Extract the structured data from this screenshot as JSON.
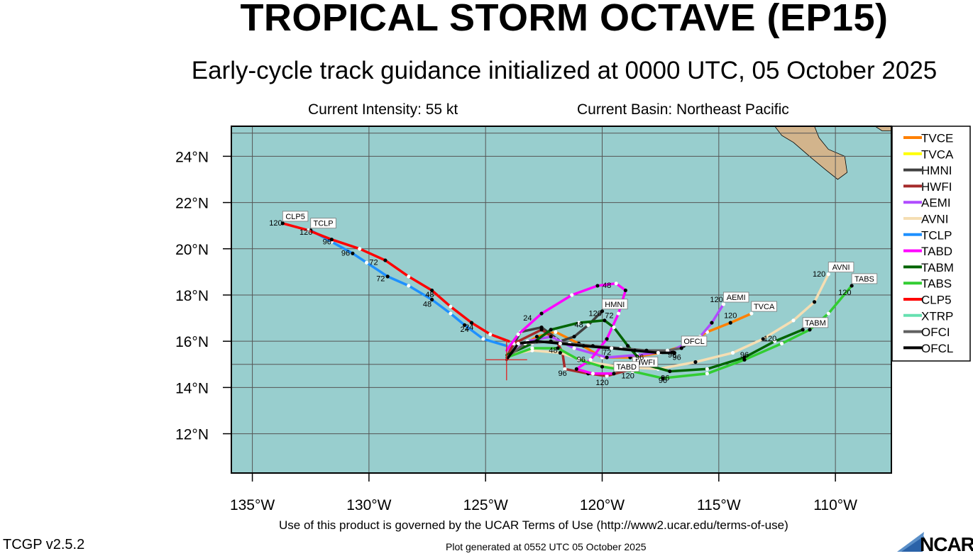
{
  "header": {
    "title": "TROPICAL STORM OCTAVE (EP15)",
    "subtitle": "Early-cycle track guidance initialized at 0000 UTC, 05 October 2025",
    "intensity": "Current Intensity: 55 kt",
    "basin": "Current Basin: Northeast Pacific"
  },
  "footer": {
    "terms": "Use of this product is governed by the UCAR Terms of Use (http://www2.ucar.edu/terms-of-use)",
    "version": "TCGP v2.5.2",
    "generated": "Plot generated at 0552 UTC   05 October 2025",
    "logo": "NCAR"
  },
  "colors": {
    "ocean": "#98cece",
    "land": "#d2b48c",
    "grid": "#555555"
  },
  "map": {
    "lon_ticks": [
      {
        "value": -135,
        "label": "135°W"
      },
      {
        "value": -130,
        "label": "130°W"
      },
      {
        "value": -125,
        "label": "125°W"
      },
      {
        "value": -120,
        "label": "120°W"
      },
      {
        "value": -115,
        "label": "115°W"
      },
      {
        "value": -110,
        "label": "110°W"
      }
    ],
    "lat_ticks": [
      {
        "value": 12,
        "label": "12°N"
      },
      {
        "value": 14,
        "label": "14°N"
      },
      {
        "value": 16,
        "label": "16°N"
      },
      {
        "value": 18,
        "label": "18°N"
      },
      {
        "value": 20,
        "label": "20°N"
      },
      {
        "value": 22,
        "label": "22°N"
      },
      {
        "value": 24,
        "label": "24°N"
      }
    ],
    "extent": {
      "lon": [
        -135.9,
        -107.6
      ],
      "lat": [
        10.3,
        25.3
      ]
    },
    "current_position": {
      "lon": -124.1,
      "lat": 15.2
    }
  },
  "legend": [
    {
      "name": "TVCE",
      "color": "#ff8000"
    },
    {
      "name": "TVCA",
      "color": "#ffff00"
    },
    {
      "name": "HMNI",
      "color": "#404040"
    },
    {
      "name": "HWFI",
      "color": "#a52a2a"
    },
    {
      "name": "AEMI",
      "color": "#b04cff"
    },
    {
      "name": "AVNI",
      "color": "#f5deb3"
    },
    {
      "name": "TCLP",
      "color": "#1e90ff"
    },
    {
      "name": "TABD",
      "color": "#ff00ff"
    },
    {
      "name": "TABM",
      "color": "#006400"
    },
    {
      "name": "TABS",
      "color": "#32cd32"
    },
    {
      "name": "CLP5",
      "color": "#ff0000"
    },
    {
      "name": "XTRP",
      "color": "#66e0b0"
    },
    {
      "name": "OFCI",
      "color": "#606060"
    },
    {
      "name": "OFCL",
      "color": "#000000"
    }
  ],
  "tracks": [
    {
      "model": "TCLP",
      "color": "#1e90ff",
      "label": "TCLP",
      "points": [
        [
          -124.1,
          15.8
        ],
        [
          -125.1,
          16.1
        ],
        [
          -125.9,
          16.7
        ],
        [
          -126.5,
          17.2
        ],
        [
          -127.3,
          17.8
        ],
        [
          -128.3,
          18.4
        ],
        [
          -129.2,
          18.8
        ],
        [
          -130.1,
          19.4
        ],
        [
          -130.7,
          19.8
        ],
        [
          -131.6,
          20.3
        ],
        [
          -132.5,
          20.8
        ]
      ],
      "hour_labels": [
        {
          "text": "24",
          "lon": -125.9,
          "lat": 16.4
        },
        {
          "text": "48",
          "lon": -127.5,
          "lat": 17.5
        },
        {
          "text": "72",
          "lon": -129.5,
          "lat": 18.6
        },
        {
          "text": "96",
          "lon": -131.0,
          "lat": 19.7
        },
        {
          "text": "120",
          "lon": -132.7,
          "lat": 20.6
        }
      ]
    },
    {
      "model": "CLP5",
      "color": "#ff0000",
      "label": "CLP5",
      "points": [
        [
          -124.0,
          16.0
        ],
        [
          -124.8,
          16.3
        ],
        [
          -125.6,
          16.8
        ],
        [
          -126.5,
          17.5
        ],
        [
          -127.3,
          18.2
        ],
        [
          -128.3,
          18.8
        ],
        [
          -129.3,
          19.5
        ],
        [
          -130.4,
          20.0
        ],
        [
          -131.6,
          20.4
        ],
        [
          -132.6,
          20.8
        ],
        [
          -133.7,
          21.1
        ]
      ],
      "hour_labels": [
        {
          "text": "24",
          "lon": -125.7,
          "lat": 16.5
        },
        {
          "text": "48",
          "lon": -127.4,
          "lat": 17.9
        },
        {
          "text": "72",
          "lon": -129.8,
          "lat": 19.3
        },
        {
          "text": "96",
          "lon": -131.8,
          "lat": 20.2
        },
        {
          "text": "120",
          "lon": -134.0,
          "lat": 21.0
        }
      ]
    },
    {
      "model": "TVCE",
      "color": "#ff8000",
      "label": "TVCA",
      "points": [
        [
          -124.1,
          15.3
        ],
        [
          -123.6,
          15.7
        ],
        [
          -122.8,
          16.2
        ],
        [
          -122.0,
          16.4
        ],
        [
          -121.0,
          15.9
        ],
        [
          -120.0,
          15.3
        ],
        [
          -118.8,
          15.3
        ],
        [
          -117.5,
          15.5
        ],
        [
          -116.5,
          15.8
        ],
        [
          -115.5,
          16.4
        ],
        [
          -114.5,
          16.8
        ],
        [
          -113.6,
          17.2
        ]
      ],
      "hour_labels": [
        {
          "text": "120",
          "lon": -114.5,
          "lat": 17.0
        }
      ]
    },
    {
      "model": "HMNI",
      "color": "#404040",
      "label": "HMNI",
      "points": [
        [
          -124.0,
          15.5
        ],
        [
          -123.5,
          16.4
        ],
        [
          -122.6,
          16.6
        ],
        [
          -121.8,
          16.0
        ],
        [
          -121.2,
          16.2
        ],
        [
          -120.6,
          16.7
        ],
        [
          -120.0,
          17.3
        ]
      ],
      "hour_labels": [
        {
          "text": "48",
          "lon": -121.0,
          "lat": 16.6
        },
        {
          "text": "120",
          "lon": -120.3,
          "lat": 17.1
        }
      ]
    },
    {
      "model": "HWFI",
      "color": "#a52a2a",
      "label": "HWFI",
      "points": [
        [
          -124.1,
          15.3
        ],
        [
          -123.8,
          15.9
        ],
        [
          -122.6,
          16.5
        ],
        [
          -122.0,
          16.1
        ],
        [
          -121.7,
          15.5
        ],
        [
          -121.6,
          14.8
        ],
        [
          -120.6,
          14.6
        ],
        [
          -119.8,
          14.5
        ],
        [
          -118.7,
          14.8
        ]
      ],
      "hour_labels": [
        {
          "text": "96",
          "lon": -121.7,
          "lat": 14.5
        },
        {
          "text": "120",
          "lon": -118.9,
          "lat": 14.4
        }
      ]
    },
    {
      "model": "AEMI",
      "color": "#b04cff",
      "label": "AEMI",
      "points": [
        [
          -124.0,
          15.4
        ],
        [
          -123.2,
          16.0
        ],
        [
          -122.2,
          16.2
        ],
        [
          -121.2,
          15.7
        ],
        [
          -119.8,
          15.3
        ],
        [
          -118.5,
          15.4
        ],
        [
          -117.0,
          15.6
        ],
        [
          -115.8,
          16.2
        ],
        [
          -115.3,
          16.8
        ],
        [
          -114.8,
          17.6
        ]
      ],
      "hour_labels": [
        {
          "text": "96",
          "lon": -118.4,
          "lat": 15.2
        },
        {
          "text": "120",
          "lon": -115.1,
          "lat": 17.7
        }
      ]
    },
    {
      "model": "AVNI",
      "color": "#f5deb3",
      "label": "AVNI",
      "points": [
        [
          -124.1,
          15.4
        ],
        [
          -123.0,
          15.6
        ],
        [
          -121.8,
          15.5
        ],
        [
          -120.6,
          15.1
        ],
        [
          -119.3,
          14.9
        ],
        [
          -117.6,
          14.8
        ],
        [
          -116.0,
          15.1
        ],
        [
          -114.4,
          15.5
        ],
        [
          -113.1,
          16.1
        ],
        [
          -111.8,
          16.9
        ],
        [
          -110.9,
          17.7
        ],
        [
          -110.3,
          18.9
        ]
      ],
      "hour_labels": [
        {
          "text": "96",
          "lon": -113.9,
          "lat": 15.3
        },
        {
          "text": "120",
          "lon": -110.7,
          "lat": 18.8
        }
      ]
    },
    {
      "model": "TABD",
      "color": "#ff00ff",
      "label": "TABD",
      "points": [
        [
          -124.1,
          15.6
        ],
        [
          -123.6,
          16.3
        ],
        [
          -122.6,
          17.2
        ],
        [
          -121.3,
          18.0
        ],
        [
          -120.2,
          18.4
        ],
        [
          -119.4,
          18.5
        ],
        [
          -119.0,
          18.2
        ],
        [
          -119.3,
          17.2
        ],
        [
          -119.8,
          16.1
        ],
        [
          -120.5,
          15.2
        ],
        [
          -121.1,
          14.8
        ],
        [
          -120.4,
          14.6
        ],
        [
          -119.5,
          14.6
        ]
      ],
      "hour_labels": [
        {
          "text": "24",
          "lon": -123.2,
          "lat": 16.9
        },
        {
          "text": "48",
          "lon": -119.8,
          "lat": 18.3
        },
        {
          "text": "72",
          "lon": -119.7,
          "lat": 17.0
        },
        {
          "text": "96",
          "lon": -120.9,
          "lat": 15.1
        },
        {
          "text": "120",
          "lon": -120.0,
          "lat": 14.1
        }
      ]
    },
    {
      "model": "TABM",
      "color": "#006400",
      "label": "TABM",
      "points": [
        [
          -124.1,
          15.4
        ],
        [
          -123.0,
          15.9
        ],
        [
          -122.2,
          16.5
        ],
        [
          -121.0,
          16.8
        ],
        [
          -119.9,
          16.9
        ],
        [
          -119.5,
          16.6
        ],
        [
          -118.9,
          15.8
        ],
        [
          -118.2,
          15.0
        ],
        [
          -117.1,
          14.7
        ],
        [
          -115.5,
          14.8
        ],
        [
          -113.9,
          15.3
        ],
        [
          -112.6,
          16.0
        ],
        [
          -111.4,
          16.5
        ]
      ],
      "hour_labels": [
        {
          "text": "96",
          "lon": -117.3,
          "lat": 14.3
        },
        {
          "text": "120",
          "lon": -112.8,
          "lat": 16.0
        }
      ]
    },
    {
      "model": "TABS",
      "color": "#32cd32",
      "label": "TABS",
      "points": [
        [
          -124.1,
          15.3
        ],
        [
          -123.0,
          15.7
        ],
        [
          -121.9,
          15.7
        ],
        [
          -121.0,
          15.2
        ],
        [
          -120.0,
          14.9
        ],
        [
          -118.7,
          14.7
        ],
        [
          -117.4,
          14.4
        ],
        [
          -115.5,
          14.6
        ],
        [
          -113.9,
          15.2
        ],
        [
          -112.3,
          15.9
        ],
        [
          -111.1,
          16.5
        ],
        [
          -110.3,
          17.2
        ],
        [
          -109.3,
          18.4
        ]
      ],
      "hour_labels": [
        {
          "text": "96",
          "lon": -117.4,
          "lat": 14.2
        },
        {
          "text": "120",
          "lon": -109.6,
          "lat": 18.0
        }
      ]
    },
    {
      "model": "OFCI",
      "color": "#606060",
      "label": "OFCL",
      "points": [
        [
          -124.1,
          15.3
        ],
        [
          -123.3,
          15.9
        ],
        [
          -122.2,
          16.0
        ],
        [
          -121.4,
          15.9
        ],
        [
          -120.4,
          15.8
        ],
        [
          -119.2,
          15.7
        ],
        [
          -118.1,
          15.6
        ],
        [
          -117.2,
          15.6
        ],
        [
          -116.6,
          15.7
        ]
      ],
      "hour_labels": [
        {
          "text": "72",
          "lon": -119.8,
          "lat": 15.4
        },
        {
          "text": "96",
          "lon": -117.0,
          "lat": 15.3
        }
      ]
    },
    {
      "model": "OFCL",
      "color": "#000000",
      "label": "",
      "points": [
        [
          -124.1,
          15.2
        ],
        [
          -123.6,
          15.9
        ],
        [
          -122.8,
          16.0
        ],
        [
          -121.8,
          15.9
        ],
        [
          -120.8,
          15.8
        ],
        [
          -119.6,
          15.7
        ],
        [
          -118.6,
          15.6
        ],
        [
          -117.6,
          15.5
        ],
        [
          -116.9,
          15.5
        ]
      ],
      "hour_labels": [
        {
          "text": "48",
          "lon": -122.1,
          "lat": 15.5
        },
        {
          "text": "96",
          "lon": -116.8,
          "lat": 15.2
        }
      ]
    }
  ],
  "land": [
    {
      "name": "Baja California",
      "points": [
        [
          -114.5,
          25.3
        ],
        [
          -112.6,
          25.3
        ],
        [
          -112.3,
          24.9
        ],
        [
          -111.8,
          24.6
        ],
        [
          -111.0,
          23.9
        ],
        [
          -110.4,
          23.4
        ],
        [
          -109.9,
          23.0
        ],
        [
          -109.5,
          23.3
        ],
        [
          -109.6,
          24.0
        ],
        [
          -110.3,
          24.3
        ],
        [
          -110.7,
          24.8
        ],
        [
          -110.9,
          25.3
        ]
      ]
    },
    {
      "name": "Sonora coast",
      "points": [
        [
          -108.3,
          25.3
        ],
        [
          -107.6,
          25.3
        ],
        [
          -107.6,
          25.1
        ],
        [
          -108.0,
          25.1
        ]
      ]
    }
  ]
}
